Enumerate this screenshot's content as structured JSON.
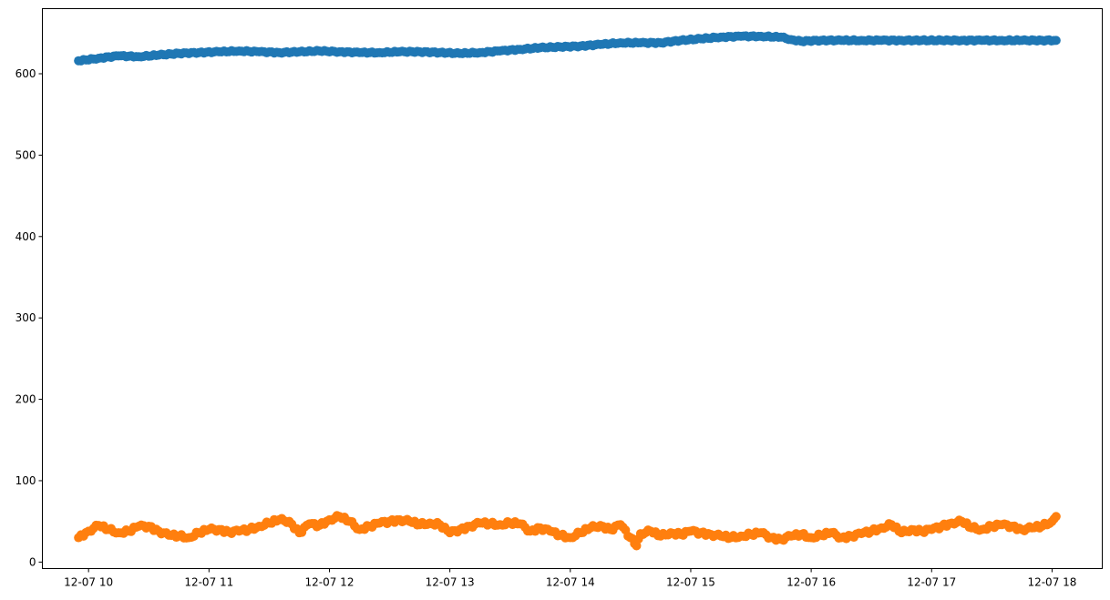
{
  "chart_data": {
    "type": "scatter",
    "title": "",
    "xlabel": "",
    "ylabel": "",
    "xlim": [
      "2022-12-07 09:37",
      "2022-12-07 18:25"
    ],
    "ylim": [
      -8,
      680
    ],
    "grid": false,
    "x_ticks": [
      {
        "value": "12-07 10",
        "hour": 10
      },
      {
        "value": "12-07 11",
        "hour": 11
      },
      {
        "value": "12-07 12",
        "hour": 12
      },
      {
        "value": "12-07 13",
        "hour": 13
      },
      {
        "value": "12-07 14",
        "hour": 14
      },
      {
        "value": "12-07 15",
        "hour": 15
      },
      {
        "value": "12-07 16",
        "hour": 16
      },
      {
        "value": "12-07 17",
        "hour": 17
      },
      {
        "value": "12-07 18",
        "hour": 18
      }
    ],
    "y_ticks": [
      0,
      100,
      200,
      300,
      400,
      500,
      600
    ],
    "series": [
      {
        "color": "#1f77b4",
        "points": [
          [
            "09:55",
            616
          ],
          [
            "10:05",
            619
          ],
          [
            "10:15",
            622
          ],
          [
            "10:25",
            621
          ],
          [
            "10:35",
            623
          ],
          [
            "10:45",
            625
          ],
          [
            "10:55",
            626
          ],
          [
            "11:05",
            627
          ],
          [
            "11:15",
            628
          ],
          [
            "11:25",
            627
          ],
          [
            "11:35",
            626
          ],
          [
            "11:45",
            627
          ],
          [
            "11:55",
            628
          ],
          [
            "12:05",
            627
          ],
          [
            "12:15",
            626
          ],
          [
            "12:25",
            626
          ],
          [
            "12:35",
            627
          ],
          [
            "12:45",
            627
          ],
          [
            "12:55",
            626
          ],
          [
            "13:05",
            625
          ],
          [
            "13:15",
            626
          ],
          [
            "13:25",
            628
          ],
          [
            "13:35",
            630
          ],
          [
            "13:45",
            632
          ],
          [
            "13:55",
            633
          ],
          [
            "14:05",
            634
          ],
          [
            "14:15",
            636
          ],
          [
            "14:25",
            638
          ],
          [
            "14:35",
            638
          ],
          [
            "14:45",
            638
          ],
          [
            "14:55",
            641
          ],
          [
            "15:05",
            643
          ],
          [
            "15:15",
            645
          ],
          [
            "15:25",
            646
          ],
          [
            "15:35",
            646
          ],
          [
            "15:45",
            645
          ],
          [
            "15:50",
            642
          ],
          [
            "15:55",
            640
          ],
          [
            "16:05",
            641
          ],
          [
            "16:15",
            641
          ],
          [
            "16:25",
            641
          ],
          [
            "16:35",
            641
          ],
          [
            "16:45",
            641
          ],
          [
            "16:55",
            641
          ],
          [
            "17:05",
            641
          ],
          [
            "17:15",
            641
          ],
          [
            "17:25",
            641
          ],
          [
            "17:35",
            641
          ],
          [
            "17:45",
            641
          ],
          [
            "17:55",
            641
          ],
          [
            "18:02",
            641
          ]
        ]
      },
      {
        "color": "#ff7f0e",
        "points": [
          [
            "09:55",
            30
          ],
          [
            "10:00",
            38
          ],
          [
            "10:05",
            45
          ],
          [
            "10:10",
            40
          ],
          [
            "10:15",
            36
          ],
          [
            "10:20",
            38
          ],
          [
            "10:25",
            44
          ],
          [
            "10:30",
            44
          ],
          [
            "10:35",
            38
          ],
          [
            "10:40",
            33
          ],
          [
            "10:45",
            32
          ],
          [
            "10:50",
            30
          ],
          [
            "10:55",
            36
          ],
          [
            "11:00",
            40
          ],
          [
            "11:05",
            40
          ],
          [
            "11:10",
            37
          ],
          [
            "11:15",
            38
          ],
          [
            "11:20",
            40
          ],
          [
            "11:25",
            44
          ],
          [
            "11:30",
            48
          ],
          [
            "11:35",
            52
          ],
          [
            "11:40",
            50
          ],
          [
            "11:45",
            36
          ],
          [
            "11:50",
            47
          ],
          [
            "11:55",
            45
          ],
          [
            "12:00",
            52
          ],
          [
            "12:05",
            56
          ],
          [
            "12:10",
            50
          ],
          [
            "12:15",
            40
          ],
          [
            "12:20",
            44
          ],
          [
            "12:25",
            48
          ],
          [
            "12:30",
            50
          ],
          [
            "12:35",
            52
          ],
          [
            "12:40",
            50
          ],
          [
            "12:45",
            46
          ],
          [
            "12:50",
            48
          ],
          [
            "12:55",
            46
          ],
          [
            "13:00",
            36
          ],
          [
            "13:05",
            40
          ],
          [
            "13:10",
            44
          ],
          [
            "13:15",
            48
          ],
          [
            "13:20",
            47
          ],
          [
            "13:25",
            46
          ],
          [
            "13:30",
            48
          ],
          [
            "13:35",
            47
          ],
          [
            "13:40",
            38
          ],
          [
            "13:45",
            42
          ],
          [
            "13:50",
            38
          ],
          [
            "13:55",
            33
          ],
          [
            "14:00",
            30
          ],
          [
            "14:05",
            36
          ],
          [
            "14:10",
            42
          ],
          [
            "14:15",
            45
          ],
          [
            "14:20",
            40
          ],
          [
            "14:25",
            46
          ],
          [
            "14:30",
            30
          ],
          [
            "14:33",
            20
          ],
          [
            "14:35",
            35
          ],
          [
            "14:40",
            38
          ],
          [
            "14:45",
            32
          ],
          [
            "14:50",
            36
          ],
          [
            "14:55",
            34
          ],
          [
            "15:00",
            38
          ],
          [
            "15:05",
            36
          ],
          [
            "15:10",
            34
          ],
          [
            "15:15",
            32
          ],
          [
            "15:20",
            30
          ],
          [
            "15:25",
            32
          ],
          [
            "15:30",
            34
          ],
          [
            "15:35",
            36
          ],
          [
            "15:40",
            30
          ],
          [
            "15:45",
            28
          ],
          [
            "15:50",
            32
          ],
          [
            "15:55",
            34
          ],
          [
            "16:00",
            30
          ],
          [
            "16:05",
            33
          ],
          [
            "16:10",
            36
          ],
          [
            "16:15",
            30
          ],
          [
            "16:20",
            32
          ],
          [
            "16:25",
            35
          ],
          [
            "16:30",
            38
          ],
          [
            "16:35",
            42
          ],
          [
            "16:40",
            46
          ],
          [
            "16:45",
            36
          ],
          [
            "16:50",
            40
          ],
          [
            "16:55",
            38
          ],
          [
            "17:00",
            40
          ],
          [
            "17:05",
            44
          ],
          [
            "17:10",
            48
          ],
          [
            "17:15",
            50
          ],
          [
            "17:20",
            42
          ],
          [
            "17:25",
            40
          ],
          [
            "17:30",
            44
          ],
          [
            "17:35",
            46
          ],
          [
            "17:40",
            44
          ],
          [
            "17:45",
            40
          ],
          [
            "17:50",
            42
          ],
          [
            "17:55",
            44
          ],
          [
            "18:00",
            50
          ],
          [
            "18:02",
            56
          ]
        ]
      }
    ]
  }
}
